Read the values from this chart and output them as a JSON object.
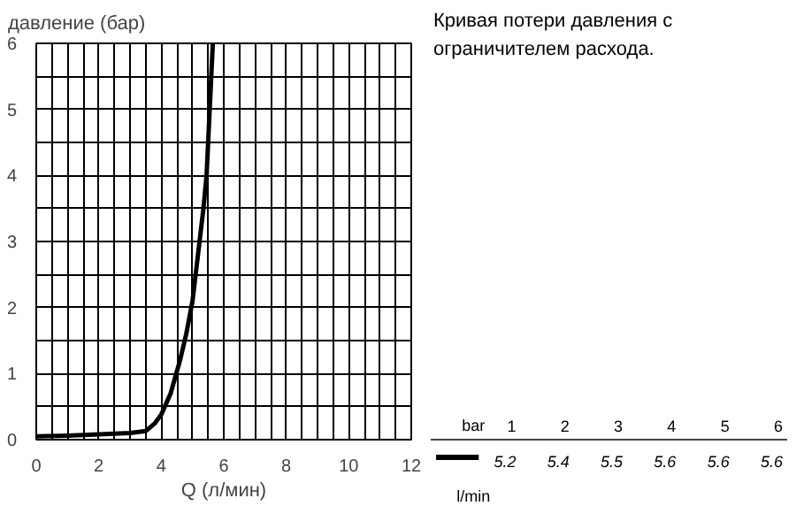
{
  "chart_data": [
    {
      "type": "line",
      "ylabel": "давление (бар)",
      "xlabel": "Q (л/мин)",
      "grid": true,
      "line_style": "solid",
      "marker": "none",
      "xlim": [
        0,
        12
      ],
      "ylim": [
        0,
        6
      ],
      "xticks": [
        0,
        {
          "value": 0.5,
          "label": null
        },
        {
          "value": 1,
          "label": null
        },
        {
          "value": 1.5,
          "label": null
        },
        2,
        {
          "value": 2.5,
          "label": null
        },
        {
          "value": 3,
          "label": null
        },
        {
          "value": 3.5,
          "label": null
        },
        4,
        {
          "value": 4.5,
          "label": null
        },
        {
          "value": 5,
          "label": null
        },
        {
          "value": 5.5,
          "label": null
        },
        6,
        {
          "value": 6.5,
          "label": null
        },
        {
          "value": 7,
          "label": null
        },
        {
          "value": 7.5,
          "label": null
        },
        8,
        {
          "value": 8.5,
          "label": null
        },
        {
          "value": 9,
          "label": null
        },
        {
          "value": 9.5,
          "label": null
        },
        10,
        {
          "value": 10.5,
          "label": null
        },
        {
          "value": 11,
          "label": null
        },
        {
          "value": 11.5,
          "label": null
        },
        12
      ],
      "yticks": [
        0,
        {
          "value": 0.5,
          "label": null
        },
        1,
        {
          "value": 1.5,
          "label": null
        },
        2,
        {
          "value": 2.5,
          "label": null
        },
        3,
        {
          "value": 3.5,
          "label": null
        },
        4,
        {
          "value": 4.5,
          "label": null
        },
        5,
        {
          "value": 5.5,
          "label": null
        },
        6
      ],
      "series": [
        {
          "color": "#000000",
          "x": [
            0,
            1,
            2,
            3,
            3.5,
            3.8,
            4,
            4.3,
            4.6,
            4.8,
            5.0,
            5.2,
            5.35,
            5.45,
            5.5,
            5.6,
            5.65
          ],
          "values": [
            0.05,
            0.06,
            0.08,
            0.1,
            0.13,
            0.25,
            0.38,
            0.7,
            1.2,
            1.6,
            2.1,
            2.9,
            3.5,
            4.0,
            4.5,
            5.5,
            6.0
          ]
        }
      ]
    },
    {
      "type": "heatmap",
      "title": "Кривая потери давления с ограничителем расхода.",
      "xlabel": "bar",
      "categories": [
        "1",
        "2",
        "3",
        "4",
        "5",
        "6"
      ],
      "y_categories": [
        "l/min"
      ],
      "cells": [
        [
          5.2,
          5.4,
          5.5,
          5.6,
          5.6,
          5.6
        ]
      ],
      "data_labels": true
    }
  ]
}
